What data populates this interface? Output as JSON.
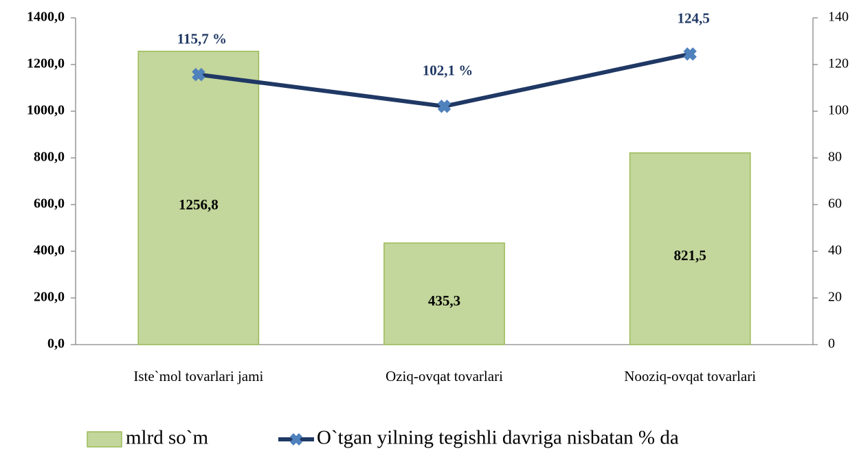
{
  "chart_data": {
    "type": "combo",
    "categories": [
      "Iste`mol tovarlari jami",
      "Oziq-ovqat tovarlari",
      "Nooziq-ovqat tovarlari"
    ],
    "series": [
      {
        "name": "mlrd so`m",
        "type": "bar",
        "color": "#c3d69b",
        "stroke": "#9bbb59",
        "values": [
          1256.8,
          435.3,
          821.5
        ],
        "value_labels": [
          "1256,8",
          "435,3",
          "821,5"
        ]
      },
      {
        "name": "O`tgan yilning tegishli davriga nisbatan % da",
        "type": "line",
        "axis": "y2",
        "color": "#1f3864",
        "marker_color": "#4f81bd",
        "values": [
          115.7,
          102.1,
          124.5
        ],
        "value_labels": [
          "115,7 %",
          "102,1 %",
          "124,5"
        ]
      }
    ],
    "ylim": [
      0,
      1400
    ],
    "yticks": [
      {
        "value": 0,
        "label": "0,0"
      },
      {
        "value": 200,
        "label": "200,0"
      },
      {
        "value": 400,
        "label": "400,0"
      },
      {
        "value": 600,
        "label": "600,0"
      },
      {
        "value": 800,
        "label": "800,0"
      },
      {
        "value": 1000,
        "label": "1000,0"
      },
      {
        "value": 1200,
        "label": "1200,0"
      },
      {
        "value": 1400,
        "label": "1400,0"
      }
    ],
    "y2lim": [
      0,
      140
    ],
    "y2ticks": [
      0,
      20,
      40,
      60,
      80,
      100,
      120,
      140
    ],
    "grid": false,
    "legend": "bottom"
  }
}
